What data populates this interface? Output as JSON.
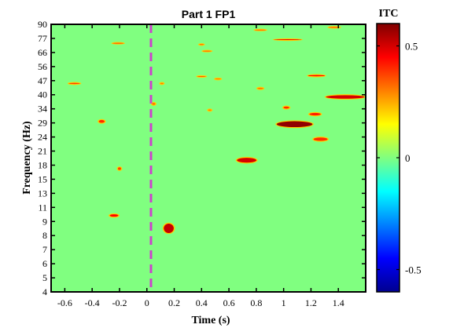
{
  "chart_data": {
    "type": "heatmap",
    "title": "Part 1 FP1",
    "xlabel": "Time (s)",
    "ylabel": "Frequency (Hz)",
    "xlim": [
      -0.7,
      1.6
    ],
    "x_ticks": [
      "-0.6",
      "-0.4",
      "-0.2",
      "0",
      "0.2",
      "0.4",
      "0.6",
      "0.8",
      "1",
      "1.2",
      "1.4"
    ],
    "x_tick_values": [
      -0.6,
      -0.4,
      -0.2,
      0,
      0.2,
      0.4,
      0.6,
      0.8,
      1,
      1.2,
      1.4
    ],
    "y_ticks": [
      "90",
      "77",
      "66",
      "56",
      "47",
      "40",
      "34",
      "29",
      "24",
      "21",
      "18",
      "15",
      "13",
      "11",
      "9",
      "8",
      "7",
      "6",
      "5",
      "4"
    ],
    "background_color": "#80ff80",
    "colorbar": {
      "title": "ITC",
      "ticks": [
        "0.5",
        "0",
        "-0.5"
      ],
      "tick_values": [
        0.5,
        0,
        -0.5
      ],
      "range": [
        -0.6,
        0.6
      ]
    },
    "event_marker": {
      "x": 0.03,
      "style": "dashed",
      "color": "#cc44cc"
    },
    "clusters": [
      {
        "t": -0.21,
        "t_half_width": 0.05,
        "f": 73.0,
        "f_half_width": 0.8,
        "itc": 0.38
      },
      {
        "t": 0.4,
        "t_half_width": 0.025,
        "f": 72.0,
        "f_half_width": 0.8,
        "itc": 0.35
      },
      {
        "t": 0.44,
        "t_half_width": 0.04,
        "f": 67.0,
        "f_half_width": 0.8,
        "itc": 0.35
      },
      {
        "t": 0.83,
        "t_half_width": 0.05,
        "f": 84.5,
        "f_half_width": 0.8,
        "itc": 0.35
      },
      {
        "t": 1.03,
        "t_half_width": 0.11,
        "f": 76.0,
        "f_half_width": 1.0,
        "itc": 0.48
      },
      {
        "t": 1.37,
        "t_half_width": 0.05,
        "f": 87.0,
        "f_half_width": 0.8,
        "itc": 0.38
      },
      {
        "t": -0.53,
        "t_half_width": 0.05,
        "f": 45.5,
        "f_half_width": 0.8,
        "itc": 0.38
      },
      {
        "t": 0.4,
        "t_half_width": 0.04,
        "f": 49.5,
        "f_half_width": 0.8,
        "itc": 0.35
      },
      {
        "t": 0.52,
        "t_half_width": 0.03,
        "f": 48.0,
        "f_half_width": 0.8,
        "itc": 0.32
      },
      {
        "t": 0.11,
        "t_half_width": 0.02,
        "f": 45.5,
        "f_half_width": 0.8,
        "itc": 0.3
      },
      {
        "t": 1.24,
        "t_half_width": 0.07,
        "f": 50.0,
        "f_half_width": 1.0,
        "itc": 0.45
      },
      {
        "t": 0.83,
        "t_half_width": 0.03,
        "f": 43.0,
        "f_half_width": 0.8,
        "itc": 0.32
      },
      {
        "t": 1.45,
        "t_half_width": 0.15,
        "f": 39.0,
        "f_half_width": 1.2,
        "itc": 0.5
      },
      {
        "t": 0.05,
        "t_half_width": 0.02,
        "f": 36.0,
        "f_half_width": 0.8,
        "itc": 0.32
      },
      {
        "t": 0.46,
        "t_half_width": 0.02,
        "f": 33.5,
        "f_half_width": 0.6,
        "itc": 0.3
      },
      {
        "t": 1.02,
        "t_half_width": 0.03,
        "f": 34.5,
        "f_half_width": 0.8,
        "itc": 0.4
      },
      {
        "t": 1.23,
        "t_half_width": 0.05,
        "f": 32.0,
        "f_half_width": 0.8,
        "itc": 0.42
      },
      {
        "t": 1.08,
        "t_half_width": 0.14,
        "f": 28.5,
        "f_half_width": 1.4,
        "itc": 0.58
      },
      {
        "t": 1.27,
        "t_half_width": 0.06,
        "f": 23.5,
        "f_half_width": 0.6,
        "itc": 0.4
      },
      {
        "t": -0.33,
        "t_half_width": 0.03,
        "f": 29.5,
        "f_half_width": 0.8,
        "itc": 0.4
      },
      {
        "t": 0.73,
        "t_half_width": 0.08,
        "f": 19.0,
        "f_half_width": 0.7,
        "itc": 0.5
      },
      {
        "t": -0.2,
        "t_half_width": 0.02,
        "f": 17.2,
        "f_half_width": 0.5,
        "itc": 0.38
      },
      {
        "t": -0.24,
        "t_half_width": 0.04,
        "f": 9.8,
        "f_half_width": 0.3,
        "itc": 0.45
      },
      {
        "t": 0.16,
        "t_half_width": 0.045,
        "f": 8.5,
        "f_half_width": 0.4,
        "itc": 0.52
      }
    ]
  }
}
